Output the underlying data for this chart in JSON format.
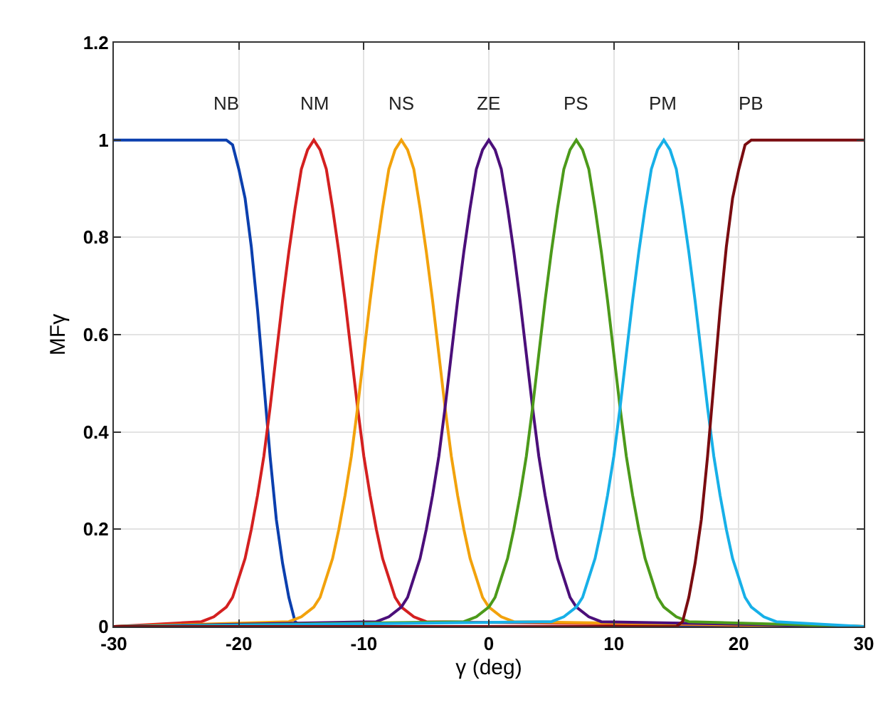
{
  "chart_data": {
    "type": "line",
    "xlabel": "γ (deg)",
    "ylabel": "MFγ",
    "xlim": [
      -30,
      30
    ],
    "xticks": [
      -30,
      -20,
      -10,
      0,
      10,
      20,
      30
    ],
    "ylim": [
      0,
      1.2
    ],
    "yticks": [
      0,
      0.2,
      0.4,
      0.6,
      0.8,
      1,
      1.2
    ],
    "grid": true,
    "legend": false,
    "marker": "none",
    "line_style": "solid",
    "series": [
      {
        "name": "NB",
        "color": "#0b3fae",
        "x": [
          -30,
          -21,
          -20.5,
          -20,
          -19.5,
          -19,
          -18.5,
          -18,
          -17.5,
          -17,
          -16.5,
          -16,
          -15.5,
          -15,
          30
        ],
        "values": [
          1,
          1,
          0.99,
          0.94,
          0.88,
          0.78,
          0.65,
          0.5,
          0.35,
          0.22,
          0.13,
          0.06,
          0.01,
          0,
          0
        ]
      },
      {
        "name": "NM",
        "color": "#d42020",
        "x": [
          -30,
          -23,
          -22,
          -21,
          -20.5,
          -20,
          -19.5,
          -19,
          -18.5,
          -18,
          -17.5,
          -17,
          -16.5,
          -16,
          -15.5,
          -15,
          -14.5,
          -14,
          -13.5,
          -13,
          -12.5,
          -12,
          -11.5,
          -11,
          -10.5,
          -10,
          -9.5,
          -9,
          -8.5,
          -8,
          -7.5,
          -7,
          -6,
          -5,
          30
        ],
        "values": [
          0,
          0.01,
          0.02,
          0.04,
          0.06,
          0.1,
          0.14,
          0.2,
          0.27,
          0.35,
          0.45,
          0.56,
          0.67,
          0.77,
          0.86,
          0.94,
          0.98,
          1,
          0.98,
          0.94,
          0.86,
          0.77,
          0.67,
          0.56,
          0.45,
          0.35,
          0.27,
          0.2,
          0.14,
          0.1,
          0.06,
          0.04,
          0.02,
          0.01,
          0
        ]
      },
      {
        "name": "NS",
        "color": "#f2a20c",
        "x": [
          -30,
          -16,
          -15,
          -14,
          -13.5,
          -13,
          -12.5,
          -12,
          -11.5,
          -11,
          -10.5,
          -10,
          -9.5,
          -9,
          -8.5,
          -8,
          -7.5,
          -7,
          -6.5,
          -6,
          -5.5,
          -5,
          -4.5,
          -4,
          -3.5,
          -3,
          -2.5,
          -2,
          -1.5,
          -1,
          -0.5,
          0,
          1,
          2,
          30
        ],
        "values": [
          0,
          0.01,
          0.02,
          0.04,
          0.06,
          0.1,
          0.14,
          0.2,
          0.27,
          0.35,
          0.45,
          0.56,
          0.67,
          0.77,
          0.86,
          0.94,
          0.98,
          1,
          0.98,
          0.94,
          0.86,
          0.77,
          0.67,
          0.56,
          0.45,
          0.35,
          0.27,
          0.2,
          0.14,
          0.1,
          0.06,
          0.04,
          0.02,
          0.01,
          0
        ]
      },
      {
        "name": "ZE",
        "color": "#4b0f7a",
        "x": [
          -30,
          -9,
          -8,
          -7,
          -6.5,
          -6,
          -5.5,
          -5,
          -4.5,
          -4,
          -3.5,
          -3,
          -2.5,
          -2,
          -1.5,
          -1,
          -0.5,
          0,
          0.5,
          1,
          1.5,
          2,
          2.5,
          3,
          3.5,
          4,
          4.5,
          5,
          5.5,
          6,
          6.5,
          7,
          8,
          9,
          30
        ],
        "values": [
          0,
          0.01,
          0.02,
          0.04,
          0.06,
          0.1,
          0.14,
          0.2,
          0.27,
          0.35,
          0.45,
          0.56,
          0.67,
          0.77,
          0.86,
          0.94,
          0.98,
          1,
          0.98,
          0.94,
          0.86,
          0.77,
          0.67,
          0.56,
          0.45,
          0.35,
          0.27,
          0.2,
          0.14,
          0.1,
          0.06,
          0.04,
          0.02,
          0.01,
          0
        ]
      },
      {
        "name": "PS",
        "color": "#4c9a1a",
        "x": [
          -30,
          -2,
          -1,
          0,
          0.5,
          1,
          1.5,
          2,
          2.5,
          3,
          3.5,
          4,
          4.5,
          5,
          5.5,
          6,
          6.5,
          7,
          7.5,
          8,
          8.5,
          9,
          9.5,
          10,
          10.5,
          11,
          11.5,
          12,
          12.5,
          13,
          13.5,
          14,
          15,
          16,
          30
        ],
        "values": [
          0,
          0.01,
          0.02,
          0.04,
          0.06,
          0.1,
          0.14,
          0.2,
          0.27,
          0.35,
          0.45,
          0.56,
          0.67,
          0.77,
          0.86,
          0.94,
          0.98,
          1,
          0.98,
          0.94,
          0.86,
          0.77,
          0.67,
          0.56,
          0.45,
          0.35,
          0.27,
          0.2,
          0.14,
          0.1,
          0.06,
          0.04,
          0.02,
          0.01,
          0
        ]
      },
      {
        "name": "PM",
        "color": "#17b0e8",
        "x": [
          -30,
          5,
          6,
          7,
          7.5,
          8,
          8.5,
          9,
          9.5,
          10,
          10.5,
          11,
          11.5,
          12,
          12.5,
          13,
          13.5,
          14,
          14.5,
          15,
          15.5,
          16,
          16.5,
          17,
          17.5,
          18,
          18.5,
          19,
          19.5,
          20,
          20.5,
          21,
          22,
          23,
          30
        ],
        "values": [
          0,
          0.01,
          0.02,
          0.04,
          0.06,
          0.1,
          0.14,
          0.2,
          0.27,
          0.35,
          0.45,
          0.56,
          0.67,
          0.77,
          0.86,
          0.94,
          0.98,
          1,
          0.98,
          0.94,
          0.86,
          0.77,
          0.67,
          0.56,
          0.45,
          0.35,
          0.27,
          0.2,
          0.14,
          0.1,
          0.06,
          0.04,
          0.02,
          0.01,
          0
        ]
      },
      {
        "name": "PB",
        "color": "#7a0c10",
        "x": [
          -30,
          15,
          15.5,
          16,
          16.5,
          17,
          17.5,
          18,
          18.5,
          19,
          19.5,
          20,
          20.5,
          21,
          30
        ],
        "values": [
          0,
          0,
          0.01,
          0.06,
          0.13,
          0.22,
          0.35,
          0.5,
          0.65,
          0.78,
          0.88,
          0.94,
          0.99,
          1,
          1
        ]
      }
    ]
  }
}
